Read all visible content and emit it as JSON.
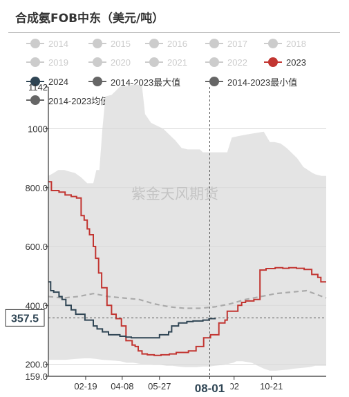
{
  "chart_data": {
    "type": "line",
    "title": "合成氨FOB中东（美元/吨）",
    "watermark": "紫金天风期货",
    "legend": [
      {
        "name": "2014",
        "color": "#cccccc",
        "active": false
      },
      {
        "name": "2015",
        "color": "#cccccc",
        "active": false
      },
      {
        "name": "2016",
        "color": "#cccccc",
        "active": false
      },
      {
        "name": "2017",
        "color": "#cccccc",
        "active": false
      },
      {
        "name": "2018",
        "color": "#cccccc",
        "active": false
      },
      {
        "name": "2019",
        "color": "#cccccc",
        "active": false
      },
      {
        "name": "2020",
        "color": "#cccccc",
        "active": false
      },
      {
        "name": "2021",
        "color": "#cccccc",
        "active": false
      },
      {
        "name": "2022",
        "color": "#cccccc",
        "active": false
      },
      {
        "name": "2023",
        "color": "#c23531",
        "active": true
      },
      {
        "name": "2024",
        "color": "#2f4554",
        "active": true
      },
      {
        "name": "2014-2023最大值",
        "color": "#666666",
        "active": true
      },
      {
        "name": "2014-2023最小值",
        "color": "#666666",
        "active": true
      },
      {
        "name": "2014-2023均值",
        "color": "#666666",
        "active": true
      }
    ],
    "x_ticks": [
      "02-19",
      "04-08",
      "05-27",
      "08-01",
      "02",
      "10-21"
    ],
    "x_ticks_day": [
      50,
      98,
      147,
      213,
      245,
      294
    ],
    "hover_x_label": "08-01",
    "y_ticks": [
      "1142",
      "1000",
      "800.0",
      "600.0",
      "400.0",
      "200.0",
      "159.0"
    ],
    "y_ticks_value": [
      1142,
      1000,
      800,
      600,
      400,
      200,
      159
    ],
    "hover_y_label": "357.5",
    "ylim": [
      159,
      1142
    ],
    "xlim": [
      1,
      366
    ],
    "series": [
      {
        "name": "2014-2023最大值",
        "kind": "band_upper",
        "x": [
          1,
          8,
          14,
          22,
          28,
          36,
          44,
          52,
          60,
          64,
          68,
          72,
          76,
          84,
          96,
          100,
          104,
          112,
          118,
          124,
          128,
          136,
          144,
          152,
          160,
          168,
          176,
          184,
          200,
          204,
          212,
          220,
          236,
          242,
          250,
          260,
          272,
          284,
          292,
          298,
          306,
          314,
          320,
          328,
          336,
          348,
          352,
          360,
          366
        ],
        "y": [
          840,
          850,
          860,
          860,
          855,
          850,
          835,
          815,
          815,
          860,
          860,
          1000,
          1110,
          1115,
          1145,
          1145,
          1145,
          1150,
          1150,
          1145,
          1050,
          1020,
          1010,
          1000,
          980,
          960,
          935,
          930,
          930,
          920,
          920,
          920,
          920,
          970,
          975,
          980,
          985,
          990,
          955,
          955,
          950,
          935,
          920,
          900,
          870,
          850,
          845,
          840,
          840
        ]
      },
      {
        "name": "2014-2023最小值",
        "kind": "band_lower",
        "x": [
          1,
          12,
          24,
          36,
          48,
          56,
          64,
          72,
          88,
          96,
          104,
          112,
          120,
          128,
          140,
          148,
          156,
          164,
          172,
          180,
          196,
          204,
          212,
          220,
          232,
          244,
          248,
          256,
          268,
          276,
          284,
          292,
          300,
          308,
          316,
          324,
          336,
          344,
          352,
          360,
          366
        ],
        "y": [
          215,
          215,
          215,
          218,
          220,
          220,
          218,
          215,
          212,
          210,
          205,
          205,
          202,
          200,
          198,
          198,
          195,
          195,
          192,
          190,
          190,
          192,
          192,
          195,
          198,
          205,
          210,
          210,
          205,
          195,
          185,
          178,
          178,
          180,
          182,
          185,
          188,
          190,
          195,
          195,
          195
        ]
      },
      {
        "name": "2014-2023均值",
        "kind": "dashed",
        "color": "#aaaaaa",
        "x": [
          1,
          20,
          40,
          60,
          80,
          100,
          120,
          140,
          160,
          180,
          200,
          220,
          240,
          260,
          280,
          300,
          320,
          340,
          366
        ],
        "y": [
          430,
          425,
          430,
          440,
          430,
          425,
          420,
          405,
          395,
          390,
          390,
          395,
          405,
          420,
          430,
          440,
          445,
          450,
          425
        ]
      },
      {
        "name": "2023",
        "kind": "step",
        "color": "#c23531",
        "x": [
          1,
          5,
          15,
          23,
          31,
          38,
          44,
          48,
          52,
          55,
          60,
          63,
          67,
          71,
          78,
          84,
          90,
          97,
          103,
          111,
          115,
          119,
          124,
          131,
          140,
          149,
          160,
          169,
          185,
          195,
          205,
          214,
          225,
          233,
          236,
          244,
          250,
          255,
          260,
          271,
          279,
          287,
          299,
          309,
          317,
          327,
          337,
          347,
          355,
          359,
          366
        ],
        "y": [
          820,
          790,
          785,
          775,
          770,
          765,
          705,
          690,
          660,
          640,
          600,
          560,
          510,
          460,
          400,
          370,
          355,
          330,
          280,
          265,
          260,
          245,
          235,
          232,
          230,
          232,
          235,
          240,
          245,
          260,
          290,
          300,
          340,
          350,
          380,
          380,
          400,
          410,
          415,
          420,
          520,
          525,
          528,
          526,
          528,
          526,
          522,
          505,
          495,
          480,
          480
        ]
      },
      {
        "name": "2024",
        "kind": "step",
        "color": "#2f4554",
        "x": [
          1,
          4,
          8,
          15,
          19,
          24,
          31,
          37,
          49,
          60,
          65,
          72,
          80,
          95,
          103,
          110,
          123,
          133,
          147,
          159,
          163,
          172,
          183,
          191,
          204,
          212,
          220
        ],
        "y": [
          480,
          450,
          445,
          430,
          420,
          400,
          385,
          370,
          350,
          330,
          320,
          310,
          300,
          295,
          292,
          290,
          290,
          290,
          300,
          310,
          330,
          340,
          345,
          347,
          350,
          355,
          357.5
        ]
      }
    ]
  }
}
